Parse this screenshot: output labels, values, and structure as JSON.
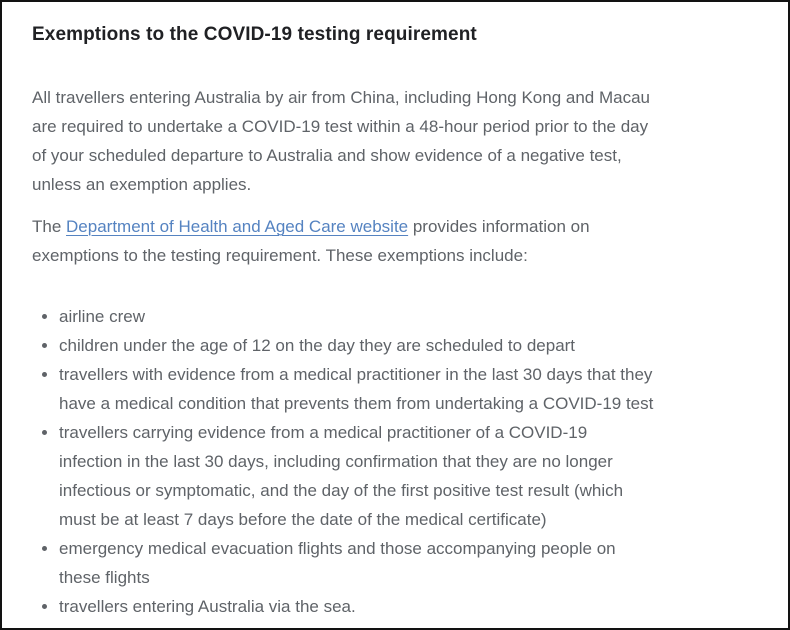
{
  "page": {
    "heading": "Exemptions to the COVID-19 testing requirement",
    "intro_paragraph": "All travellers entering Australia by air from China, including Hong Kong and Macau\nare required to undertake a COVID-19 test within a 48-hour period prior to the day\nof your scheduled departure to Australia and show evidence of a negative test,\nunless an exemption applies.",
    "link_paragraph": {
      "prefix": "The ",
      "link_text": "Department of Health and Aged Care website",
      "suffix": " provides information on\nexemptions to the testing requirement. These exemptions include:"
    },
    "exemptions": [
      "airline crew",
      "children under the age of 12 on the day they are scheduled to depart",
      "travellers with evidence from a medical practitioner in the last 30 days that they\nhave a medical condition that prevents them from undertaking a COVID-19 test",
      "travellers carrying evidence from  a medical practitioner of a COVID-19\ninfection in the last 30 days, including confirmation that they are no longer\ninfectious or symptomatic, and the day of the first positive test result (which\nmust be at least 7 days before the date of the medical certificate)",
      "emergency medical evacuation flights and those accompanying people on\nthese flights",
      "travellers entering Australia via the sea."
    ],
    "colors": {
      "heading_text": "#202124",
      "body_text": "#5f6368",
      "link": "#5583c1"
    }
  }
}
